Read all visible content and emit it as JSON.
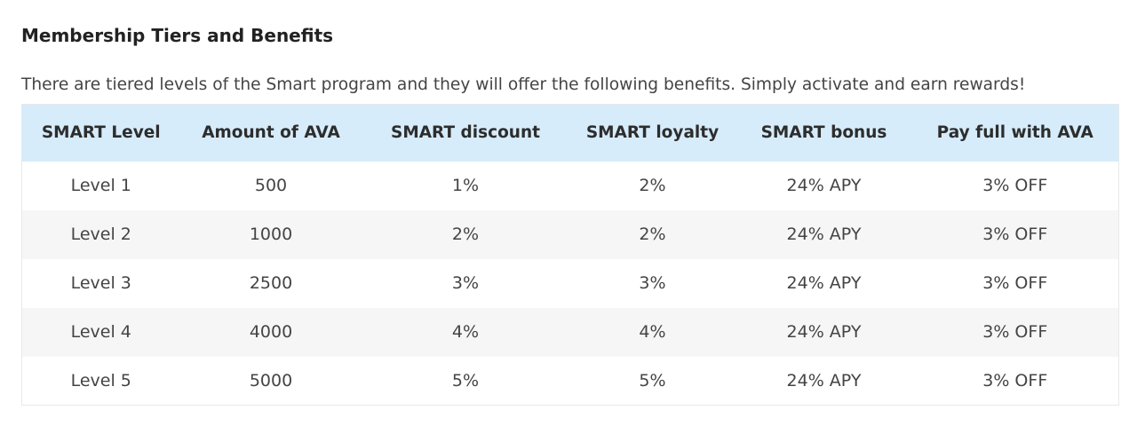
{
  "section": {
    "title": "Membership Tiers and Benefits",
    "intro": "There are tiered levels of the Smart program and they will offer the following benefits. Simply activate and earn rewards!"
  },
  "table": {
    "headers": [
      "SMART Level",
      "Amount of AVA",
      "SMART discount",
      "SMART loyalty",
      "SMART bonus",
      "Pay full with AVA"
    ],
    "rows": [
      [
        "Level 1",
        "500",
        "1%",
        "2%",
        "24% APY",
        "3% OFF"
      ],
      [
        "Level 2",
        "1000",
        "2%",
        "2%",
        "24% APY",
        "3% OFF"
      ],
      [
        "Level 3",
        "2500",
        "3%",
        "3%",
        "24% APY",
        "3% OFF"
      ],
      [
        "Level 4",
        "4000",
        "4%",
        "4%",
        "24% APY",
        "3% OFF"
      ],
      [
        "Level 5",
        "5000",
        "5%",
        "5%",
        "24% APY",
        "3% OFF"
      ]
    ]
  },
  "colors": {
    "header_background": "#d6ecfb",
    "striped_row_background": "#f6f6f6"
  }
}
